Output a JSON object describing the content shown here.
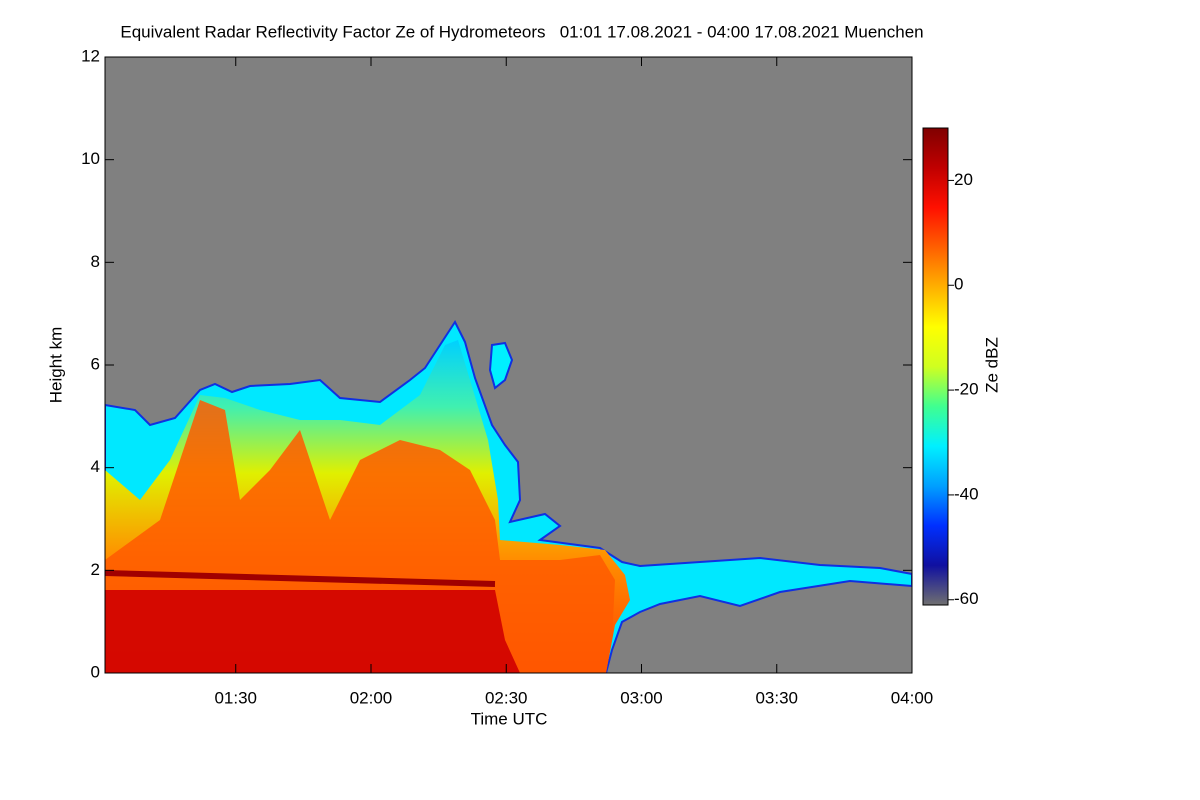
{
  "chart_data": {
    "type": "heatmap",
    "title": "Equivalent Radar Reflectivity Factor Ze of Hydrometeors   01:01 17.08.2021 - 04:00 17.08.2021 Muenchen",
    "x_label": "Time UTC",
    "y_label": "Height km",
    "xlim": [
      61,
      240
    ],
    "xticks": [
      {
        "value": 90,
        "label": "01:30"
      },
      {
        "value": 120,
        "label": "02:00"
      },
      {
        "value": 150,
        "label": "02:30"
      },
      {
        "value": 180,
        "label": "03:00"
      },
      {
        "value": 210,
        "label": "03:30"
      },
      {
        "value": 240,
        "label": "04:00"
      }
    ],
    "ylim": [
      0,
      12
    ],
    "yticks": [
      0,
      2,
      4,
      6,
      8,
      10,
      12
    ],
    "background": "#808080",
    "colorbar": {
      "label": "Ze dBZ",
      "lim": [
        -61,
        30
      ],
      "ticks": [
        -60,
        -40,
        -20,
        0,
        20
      ],
      "colors": [
        "#707070",
        "#1010a0",
        "#0030ff",
        "#00a0ff",
        "#00f0ff",
        "#40ff90",
        "#d0ff20",
        "#ffff00",
        "#ffb000",
        "#ff6000",
        "#ff1000",
        "#c00000",
        "#800000"
      ]
    }
  }
}
